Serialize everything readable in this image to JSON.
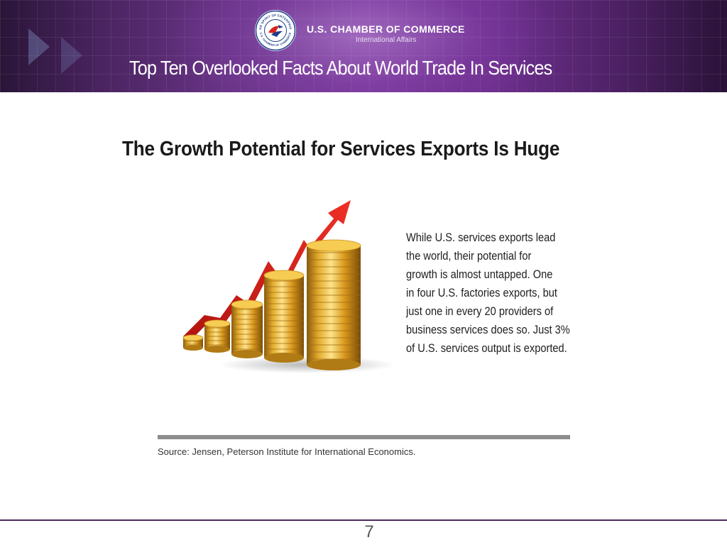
{
  "header": {
    "org_name": "U.S. CHAMBER OF COMMERCE",
    "org_subtitle": "International Affairs",
    "seal_text_top": "THE SPIRIT OF ENTERPRISE",
    "seal_text_bottom": "U.S. CHAMBER OF COMMERCE",
    "deck_title": "Top Ten Overlooked Facts About World Trade In Services"
  },
  "slide": {
    "heading": "The Growth Potential for Services Exports Is Huge",
    "body_lines": [
      "While U.S. services exports lead",
      "the world, their potential for",
      "growth is almost untapped. One",
      "in four U.S. factories exports, but",
      "just one in every 20 providers of",
      "business services does so. Just 3%",
      "of U.S. services output is exported."
    ],
    "source": "Source: Jensen, Peterson Institute for International Economics."
  },
  "footer": {
    "page_number": "7"
  },
  "colors": {
    "banner_purple": "#6a3488",
    "arrow_red": "#d8241c",
    "coin_gold": "#e0a82a",
    "rule_gray": "#8d8d8d"
  },
  "icons": {
    "seal": "chamber-seal-icon",
    "illustration": "rising-coin-stacks-with-red-arrow"
  }
}
